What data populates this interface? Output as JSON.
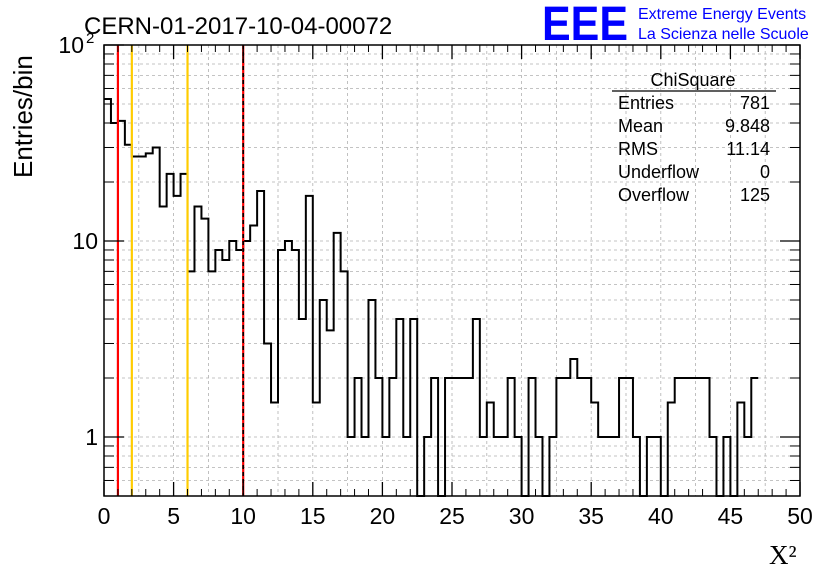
{
  "header": {
    "run_title": "CERN-01-2017-10-04-00072",
    "logo_text": "EEE",
    "logo_line1": "Extreme Energy Events",
    "logo_line2": "La Scienza nelle Scuole",
    "logo_color": "#0000ff"
  },
  "stats_box": {
    "title": "ChiSquare",
    "rows": [
      {
        "label": "Entries",
        "value": "781"
      },
      {
        "label": "Mean",
        "value": "9.848"
      },
      {
        "label": "RMS",
        "value": "11.14"
      },
      {
        "label": "Underflow",
        "value": "0"
      },
      {
        "label": "Overflow",
        "value": "125"
      }
    ]
  },
  "chart_data": {
    "type": "histogram",
    "title": "CERN-01-2017-10-04-00072",
    "xlabel": "X²",
    "ylabel": "Entries/bin",
    "xlim": [
      0,
      50
    ],
    "ylim": [
      0.5,
      100
    ],
    "yscale": "log",
    "grid": true,
    "bin_width": 0.5,
    "x_ticks": [
      "0",
      "5",
      "10",
      "15",
      "20",
      "25",
      "30",
      "35",
      "40",
      "45",
      "50"
    ],
    "y_ticks": [
      {
        "value": 1,
        "label": "1",
        "exp": ""
      },
      {
        "value": 10,
        "label": "10",
        "exp": ""
      },
      {
        "value": 100,
        "label": "10",
        "exp": "2"
      }
    ],
    "values": [
      53,
      40,
      41,
      31,
      27,
      27,
      28,
      30,
      15,
      22,
      17,
      22,
      7,
      15,
      13,
      7,
      9,
      8,
      10,
      9,
      10,
      12,
      18,
      3,
      1.5,
      9,
      10,
      9,
      4,
      17,
      1.5,
      5,
      3.5,
      11,
      7,
      1,
      2,
      1,
      5,
      2,
      1,
      2,
      4,
      1,
      4,
      0,
      1,
      2,
      0,
      2,
      2,
      2,
      2,
      4,
      1,
      1.5,
      1,
      1,
      2,
      1,
      0,
      2,
      1,
      0.5,
      1,
      2,
      2,
      2.5,
      2,
      2,
      1.5,
      1,
      1,
      1,
      2,
      2,
      1,
      0,
      1,
      1,
      0,
      1.5,
      2,
      2,
      2,
      2,
      2,
      1,
      0.5,
      1,
      0,
      1.5,
      1,
      2
    ],
    "vertical_lines": [
      {
        "x": 1,
        "color": "#ff0000",
        "style": "solid"
      },
      {
        "x": 2,
        "color": "#ffcc00",
        "style": "solid"
      },
      {
        "x": 6,
        "color": "#ffcc00",
        "style": "solid"
      },
      {
        "x": 10,
        "color": "#ff0000",
        "style": "solid"
      },
      {
        "x": 10,
        "color": "#000000",
        "style": "dashed"
      }
    ]
  }
}
